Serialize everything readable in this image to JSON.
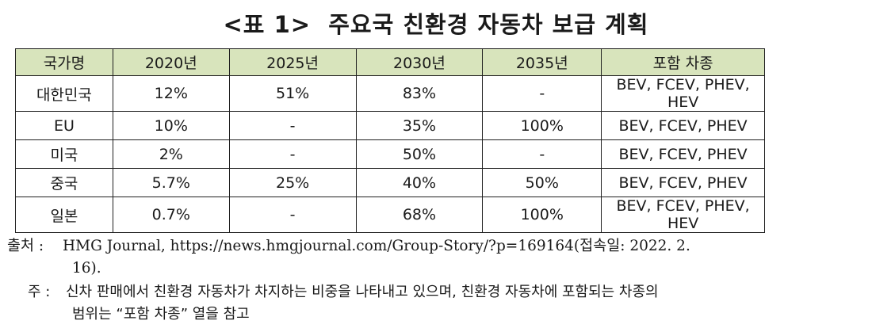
{
  "title": "<표 1>  주요국 친환경 자동차 보급 계획",
  "table": {
    "headers": [
      "국가명",
      "2020년",
      "2025년",
      "2030년",
      "2035년",
      "포함 차종"
    ],
    "rows": [
      [
        "대한민국",
        "12%",
        "51%",
        "83%",
        "-",
        "BEV, FCEV, PHEV, HEV"
      ],
      [
        "EU",
        "10%",
        "-",
        "35%",
        "100%",
        "BEV, FCEV, PHEV"
      ],
      [
        "미국",
        "2%",
        "-",
        "50%",
        "-",
        "BEV, FCEV, PHEV"
      ],
      [
        "중국",
        "5.7%",
        "25%",
        "40%",
        "50%",
        "BEV, FCEV, PHEV"
      ],
      [
        "일본",
        "0.7%",
        "-",
        "68%",
        "100%",
        "BEV, FCEV, PHEV, HEV"
      ]
    ],
    "header_bg": "#d8e4bc"
  },
  "source": {
    "label": "출처 :",
    "line1": "HMG Journal, https://news.hmgjournal.com/Group-Story/?p=169164(접속일: 2022. 2.",
    "line2": "16)."
  },
  "note": {
    "label": "주 :",
    "line1": "신차 판매에서 친환경 자동차가 차지하는 비중을 나타내고 있으며, 친환경 자동차에 포함되는 차종의",
    "line2": "범위는 “포함 차종” 열을 참고"
  }
}
